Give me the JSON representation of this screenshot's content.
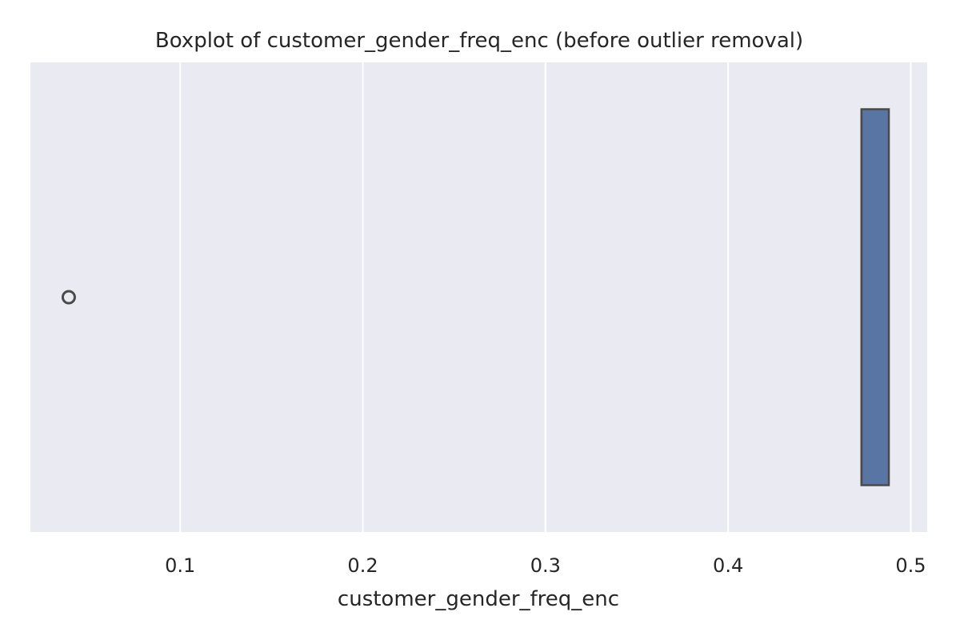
{
  "chart_data": {
    "type": "boxplot",
    "orientation": "horizontal",
    "title": "Boxplot of customer_gender_freq_enc (before outlier removal)",
    "xlabel": "customer_gender_freq_enc",
    "ylabel": "",
    "xlim": [
      0.018,
      0.509
    ],
    "xticks": [
      0.1,
      0.2,
      0.3,
      0.4,
      0.5
    ],
    "xtick_labels": [
      "0.1",
      "0.2",
      "0.3",
      "0.4",
      "0.5"
    ],
    "grid": "x-major",
    "background": "#EAEAF2",
    "gridline_color": "#FFFFFF",
    "box_color": "#5975A4",
    "edge_color": "#4A4A4A",
    "box": {
      "q1": 0.473,
      "median": 0.473,
      "q3": 0.488,
      "whisker_low": 0.473,
      "whisker_high": 0.488
    },
    "outliers": [
      0.039
    ]
  }
}
